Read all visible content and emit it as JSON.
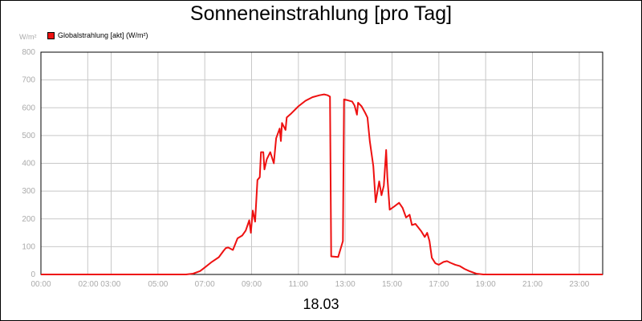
{
  "chart_data": {
    "type": "line",
    "title": "Sonneneinstrahlung [pro Tag]",
    "unit_label": "W/m²",
    "date_label": "18.03",
    "xlabel": "",
    "ylabel": "",
    "x_tick_labels": [
      "00:00",
      "02:00 03:00",
      "05:00",
      "07:00",
      "09:00",
      "11:00",
      "13:00",
      "15:00",
      "17:00",
      "19:00",
      "21:00",
      "23:00"
    ],
    "x_tick_hours": [
      0,
      2.5,
      5,
      7,
      9,
      11,
      13,
      15,
      17,
      19,
      21,
      23
    ],
    "x_grid_hours": [
      0,
      2,
      3,
      5,
      7,
      9,
      11,
      13,
      15,
      17,
      19,
      21,
      23
    ],
    "xlim": [
      0,
      24
    ],
    "ylim": [
      0,
      800
    ],
    "y_ticks": [
      0,
      100,
      200,
      300,
      400,
      500,
      600,
      700,
      800
    ],
    "grid": true,
    "legend_position": "top-left",
    "series": [
      {
        "name": "Globalstrahlung [akt] (W/m²)",
        "color": "#ee1111",
        "points": [
          [
            0,
            0
          ],
          [
            6.2,
            0
          ],
          [
            6.5,
            3
          ],
          [
            6.8,
            12
          ],
          [
            7.0,
            25
          ],
          [
            7.3,
            45
          ],
          [
            7.6,
            62
          ],
          [
            7.8,
            85
          ],
          [
            7.9,
            95
          ],
          [
            8.0,
            97
          ],
          [
            8.2,
            88
          ],
          [
            8.4,
            130
          ],
          [
            8.6,
            140
          ],
          [
            8.75,
            158
          ],
          [
            8.9,
            195
          ],
          [
            8.97,
            150
          ],
          [
            9.05,
            230
          ],
          [
            9.15,
            190
          ],
          [
            9.25,
            340
          ],
          [
            9.35,
            350
          ],
          [
            9.4,
            440
          ],
          [
            9.5,
            440
          ],
          [
            9.55,
            378
          ],
          [
            9.65,
            415
          ],
          [
            9.8,
            440
          ],
          [
            9.95,
            400
          ],
          [
            10.05,
            490
          ],
          [
            10.2,
            525
          ],
          [
            10.25,
            480
          ],
          [
            10.3,
            545
          ],
          [
            10.45,
            520
          ],
          [
            10.5,
            565
          ],
          [
            10.7,
            580
          ],
          [
            11.0,
            605
          ],
          [
            11.3,
            625
          ],
          [
            11.6,
            638
          ],
          [
            11.9,
            645
          ],
          [
            12.1,
            648
          ],
          [
            12.25,
            645
          ],
          [
            12.35,
            640
          ],
          [
            12.4,
            65
          ],
          [
            12.7,
            63
          ],
          [
            12.9,
            120
          ],
          [
            12.95,
            630
          ],
          [
            13.1,
            627
          ],
          [
            13.3,
            622
          ],
          [
            13.4,
            608
          ],
          [
            13.5,
            575
          ],
          [
            13.55,
            618
          ],
          [
            13.7,
            605
          ],
          [
            13.85,
            582
          ],
          [
            13.95,
            565
          ],
          [
            14.05,
            480
          ],
          [
            14.2,
            390
          ],
          [
            14.3,
            260
          ],
          [
            14.45,
            335
          ],
          [
            14.55,
            285
          ],
          [
            14.65,
            320
          ],
          [
            14.75,
            448
          ],
          [
            14.8,
            350
          ],
          [
            14.9,
            233
          ],
          [
            15.1,
            245
          ],
          [
            15.3,
            258
          ],
          [
            15.45,
            240
          ],
          [
            15.6,
            205
          ],
          [
            15.75,
            215
          ],
          [
            15.85,
            178
          ],
          [
            16.0,
            182
          ],
          [
            16.25,
            155
          ],
          [
            16.4,
            135
          ],
          [
            16.5,
            150
          ],
          [
            16.6,
            120
          ],
          [
            16.7,
            60
          ],
          [
            16.85,
            40
          ],
          [
            17.0,
            35
          ],
          [
            17.2,
            45
          ],
          [
            17.35,
            48
          ],
          [
            17.5,
            42
          ],
          [
            17.7,
            35
          ],
          [
            17.9,
            30
          ],
          [
            18.1,
            20
          ],
          [
            18.3,
            12
          ],
          [
            18.6,
            3
          ],
          [
            18.9,
            0
          ],
          [
            24,
            0
          ]
        ]
      }
    ]
  }
}
